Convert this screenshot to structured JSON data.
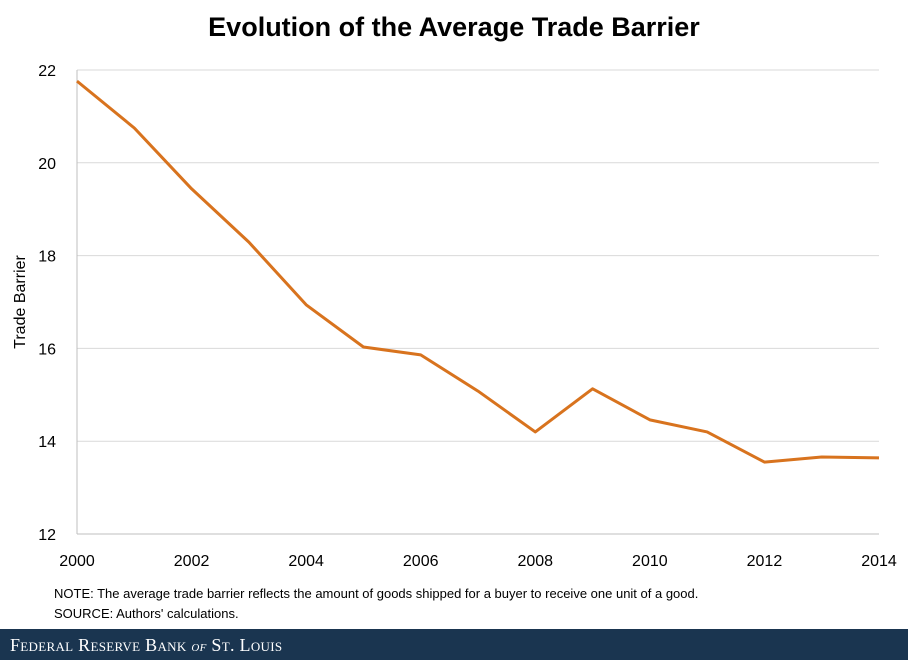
{
  "chart_data": {
    "type": "line",
    "title": "Evolution of the Average Trade Barrier",
    "xlabel": "",
    "ylabel": "Trade Barrier",
    "x": [
      2000,
      2001,
      2002,
      2003,
      2004,
      2005,
      2006,
      2007,
      2008,
      2009,
      2010,
      2011,
      2012,
      2013,
      2014
    ],
    "series": [
      {
        "values": [
          21.76,
          20.75,
          19.44,
          18.29,
          16.94,
          16.03,
          15.86,
          15.08,
          14.2,
          15.13,
          14.46,
          14.2,
          13.55,
          13.66,
          13.64
        ],
        "color": "#d8731e"
      }
    ],
    "xlim": [
      2000,
      2014
    ],
    "ylim": [
      12,
      22
    ],
    "xticks": [
      "2000",
      "2002",
      "2004",
      "2006",
      "2008",
      "2010",
      "2012",
      "2014"
    ],
    "yticks": [
      "12",
      "14",
      "16",
      "18",
      "20",
      "22"
    ],
    "grid": "horizontal",
    "legend": "none"
  },
  "notes": {
    "note": "NOTE: The average trade barrier reflects the amount of goods shipped for a buyer to receive one unit of a good.",
    "source": "SOURCE: Authors' calculations."
  },
  "footer": {
    "brand_pre": "Federal Reserve Bank ",
    "brand_of": "of",
    "brand_post": " St. Louis",
    "background": "#1a3550"
  }
}
